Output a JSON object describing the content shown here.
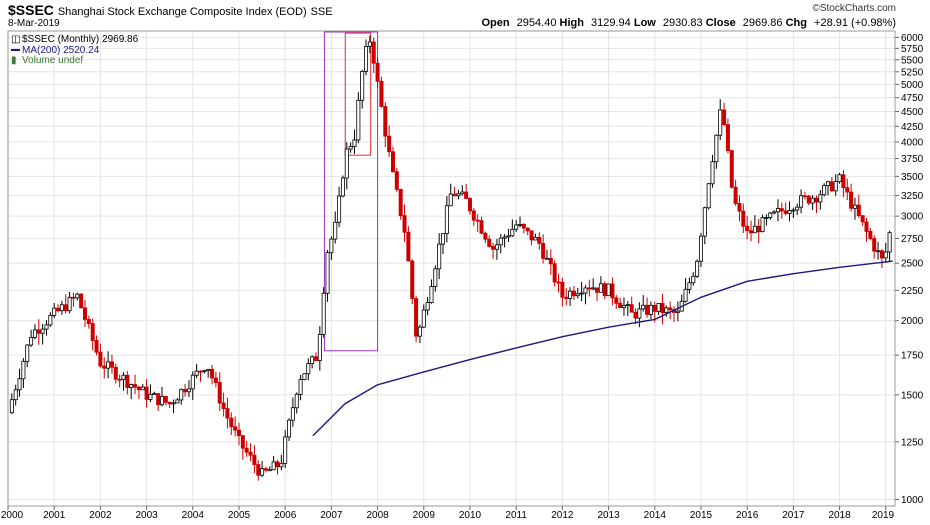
{
  "header": {
    "symbol": "$SSEC",
    "description": "Shanghai Stock Exchange Composite Index (EOD)",
    "exchange": "SSE",
    "date": "8-Mar-2019",
    "brand": "©StockCharts.com",
    "open_label": "Open",
    "open": "2954.40",
    "high_label": "High",
    "high": "3129.94",
    "low_label": "Low",
    "low": "2930.83",
    "close_label": "Close",
    "close": "2969.86",
    "chg_label": "Chg",
    "chg": "+28.91 (+0.98%)"
  },
  "legend": {
    "price": "$SSEC (Monthly) 2969.86",
    "ma": "MA(200) 2520.24",
    "volume": "Volume undef"
  },
  "colors": {
    "up": "#000000",
    "down": "#cc0000",
    "ma": "#1a1a80",
    "box_outer": "#9933cc",
    "box_inner": "#e03030",
    "grid": "#e4e4e4"
  },
  "chart_data": {
    "type": "line",
    "series": [
      {
        "name": "$SSEC (Monthly)",
        "x": [
          2000.0,
          2000.5,
          2001.0,
          2001.5,
          2002.0,
          2002.5,
          2003.0,
          2003.5,
          2004.0,
          2004.3,
          2004.7,
          2005.0,
          2005.5,
          2005.9,
          2006.3,
          2006.7,
          2006.9,
          2007.1,
          2007.3,
          2007.5,
          2007.7,
          2007.85,
          2008.0,
          2008.3,
          2008.6,
          2008.85,
          2009.2,
          2009.6,
          2009.9,
          2010.5,
          2011.0,
          2011.5,
          2012.0,
          2012.5,
          2013.0,
          2013.5,
          2014.0,
          2014.5,
          2014.9,
          2015.2,
          2015.45,
          2015.7,
          2016.0,
          2016.3,
          2016.7,
          2017.0,
          2017.5,
          2018.0,
          2018.3,
          2018.6,
          2018.95,
          2019.15
        ],
        "values": [
          1400,
          1900,
          2050,
          2200,
          1700,
          1600,
          1500,
          1450,
          1600,
          1700,
          1400,
          1250,
          1100,
          1150,
          1600,
          1750,
          2600,
          2900,
          3800,
          4100,
          5500,
          6000,
          5000,
          3600,
          2800,
          1850,
          2400,
          3300,
          3200,
          2650,
          2900,
          2700,
          2200,
          2300,
          2250,
          2050,
          2100,
          2050,
          2500,
          3600,
          4600,
          3200,
          2800,
          2900,
          3050,
          3150,
          3250,
          3450,
          3100,
          2800,
          2500,
          2970
        ]
      },
      {
        "name": "MA(200)",
        "x": [
          2006.6,
          2007.3,
          2008.0,
          2009.0,
          2010.0,
          2011.0,
          2012.0,
          2013.0,
          2014.0,
          2015.0,
          2016.0,
          2017.0,
          2018.0,
          2019.15
        ],
        "values": [
          1280,
          1450,
          1560,
          1640,
          1720,
          1800,
          1880,
          1950,
          2010,
          2190,
          2330,
          2400,
          2460,
          2520
        ]
      }
    ],
    "x_ticks": [
      "2000",
      "2001",
      "2002",
      "2003",
      "2004",
      "2005",
      "2006",
      "2007",
      "2008",
      "2009",
      "2010",
      "2011",
      "2012",
      "2013",
      "2014",
      "2015",
      "2016",
      "2017",
      "2018",
      "2019"
    ],
    "y_ticks": [
      "1000",
      "1250",
      "1500",
      "1750",
      "2000",
      "2250",
      "2500",
      "2750",
      "3000",
      "3250",
      "3500",
      "3750",
      "4000",
      "4250",
      "4500",
      "4750",
      "5000",
      "5250",
      "5500",
      "5750",
      "6000"
    ],
    "xlim": [
      2000.0,
      2019.2
    ],
    "ylim": [
      975,
      6150
    ],
    "y_scale": "log",
    "grid": true,
    "annotations": [
      {
        "type": "rect",
        "x0": 2006.85,
        "x1": 2008.0,
        "y0": 1780,
        "y1": 6150
      },
      {
        "type": "rect",
        "x0": 2007.3,
        "x1": 2007.85,
        "y0": 3800,
        "y1": 6100
      }
    ]
  }
}
